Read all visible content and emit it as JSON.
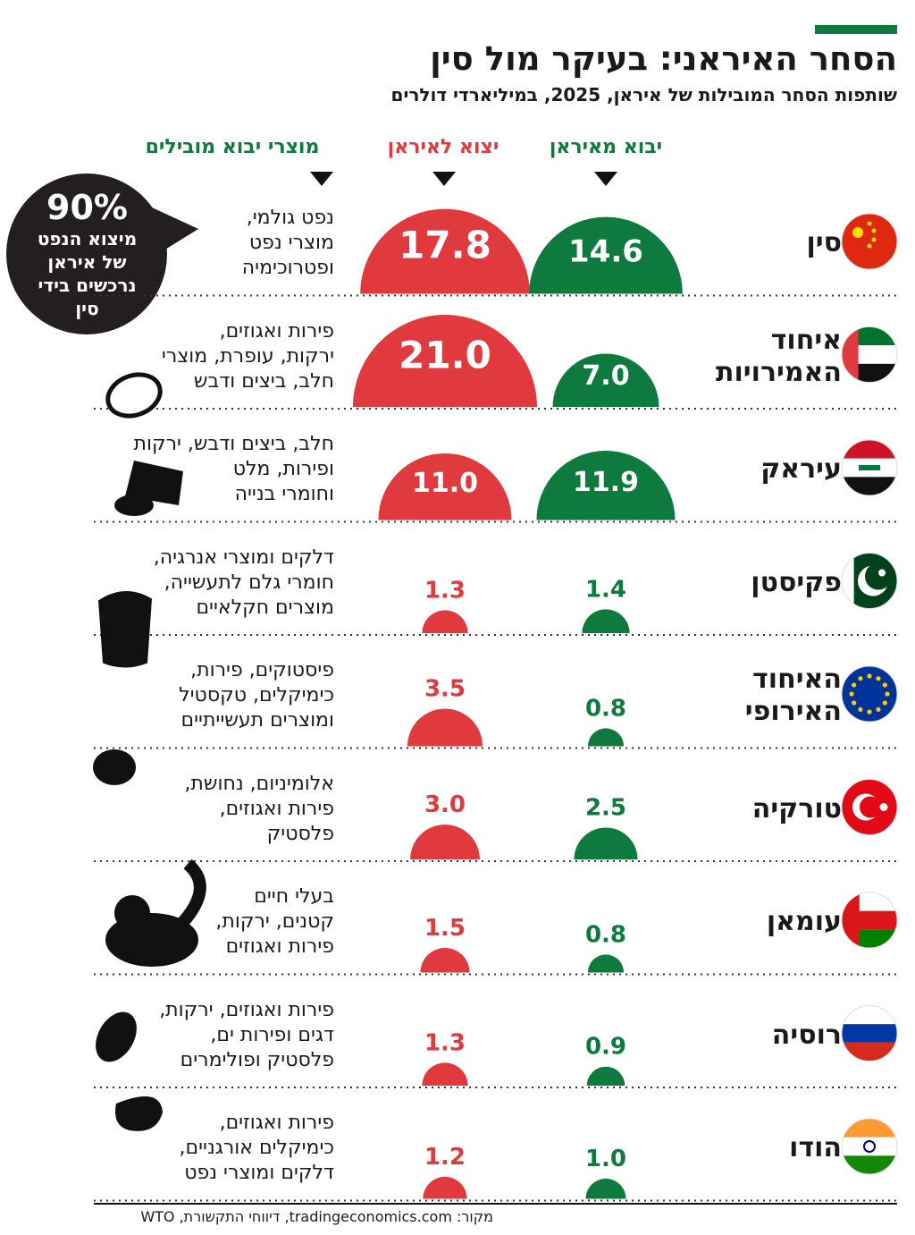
{
  "header": {
    "title": "הסחר האיראני: בעיקר מול סין",
    "subtitle": "שותפות הסחר המובילות של איראן, 2025, במיליארדי דולרים"
  },
  "columns": {
    "imports_from_iran": "יבוא מאיראן",
    "exports_to_iran": "יצוא לאיראן",
    "leading_import_products": "מוצרי יבוא מובילים"
  },
  "callout": {
    "big": "90%",
    "small": "מיצוא הנפט\nשל איראן\nנרכשים בידי\nסין"
  },
  "source": "מקור: tradingeconomics.com, דיווחי התקשורת, WTO",
  "colors": {
    "import": "#0e7a3d",
    "export": "#e03a3e",
    "dark": "#231f1e",
    "accent_bar": "#0e7a3d"
  },
  "chart_data": {
    "type": "bar",
    "unit": "",
    "categories": [
      "סין",
      "איחוד האמירויות",
      "עיראק",
      "פקיסטן",
      "האיחוד האירופי",
      "טורקיה",
      "עומאן",
      "רוסיה",
      "הודו"
    ],
    "series": [
      {
        "name": "יבוא מאיראן",
        "color": "#0e7a3d",
        "values": [
          14.6,
          7.0,
          11.9,
          1.4,
          0.8,
          2.5,
          0.8,
          0.9,
          1.0
        ]
      },
      {
        "name": "יצוא לאיראן",
        "color": "#e03a3e",
        "values": [
          17.8,
          21.0,
          11.0,
          1.3,
          3.5,
          3.0,
          1.5,
          1.3,
          1.2
        ]
      }
    ],
    "value_labels_import": [
      "14.6",
      "7.0",
      "11.9",
      "1.4",
      "0.8",
      "2.5",
      "0.8",
      "0.9",
      "1.0"
    ],
    "value_labels_export": [
      "17.8",
      "21.0",
      "11.0",
      "1.3",
      "3.5",
      "3.0",
      "1.5",
      "1.3",
      "1.2"
    ]
  },
  "rows": [
    {
      "country": "סין",
      "flag": "china-flag",
      "products": [
        "נפט גולמי,",
        "מוצרי נפט",
        "ופטרוכימיה"
      ],
      "icon": ""
    },
    {
      "country": "איחוד האמירויות",
      "country_lines": [
        "איחוד",
        "האמירויות"
      ],
      "flag": "uae-flag",
      "products": [
        "פירות ואגוזים,",
        "ירקות, עופרת, מוצרי",
        "חלב, ביצים ודבש"
      ],
      "icon": "egg-icon"
    },
    {
      "country": "עיראק",
      "flag": "iraq-flag",
      "products": [
        "חלב, ביצים ודבש, ירקות",
        "ופירות, מלט",
        "וחומרי בנייה"
      ],
      "icon": "cement-bag-icon"
    },
    {
      "country": "פקיסטן",
      "flag": "pakistan-flag",
      "products": [
        "דלקים ומוצרי אנרגיה,",
        "חומרי גלם לתעשייה,",
        "מוצרים חקלאיים"
      ],
      "icon": "grain-sack-icon"
    },
    {
      "country": "האיחוד האירופי",
      "country_lines": [
        "האיחוד",
        "האירופי"
      ],
      "flag": "eu-flag",
      "products": [
        "פיסטוקים, פירות,",
        "כימיקלים, טקסטיל",
        "ומוצרים תעשייתיים"
      ],
      "icon": "pistachio-icon"
    },
    {
      "country": "טורקיה",
      "flag": "turkey-flag",
      "products": [
        "אלומיניום, נחושת,",
        "פירות ואגוזים,",
        "פלסטיק"
      ],
      "icon": ""
    },
    {
      "country": "עומאן",
      "flag": "oman-flag",
      "products": [
        "בעלי חיים",
        "קטנים, ירקות,",
        "פירות ואגוזים"
      ],
      "icon": "cat-icon"
    },
    {
      "country": "רוסיה",
      "flag": "russia-flag",
      "products": [
        "פירות ואגוזים, ירקות,",
        "דגים ופירות ים,",
        "פלסטיק ופולימרים"
      ],
      "icon": "almond-icon"
    },
    {
      "country": "הודו",
      "flag": "india-flag",
      "products": [
        "פירות ואגוזים,",
        "כימיקלים אורגניים,",
        "דלקים ומוצרי נפט"
      ],
      "icon": "cashew-icon"
    }
  ]
}
